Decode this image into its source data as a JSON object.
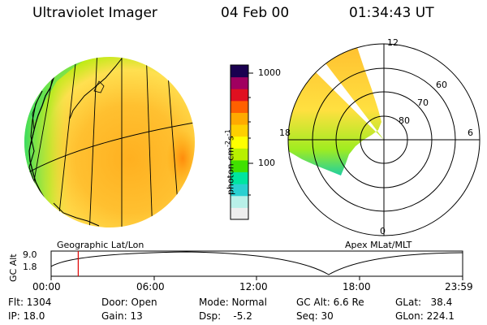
{
  "header": {
    "instrument": "Ultraviolet Imager",
    "date": "04 Feb 00",
    "time": "01:34:43 UT"
  },
  "colorbar": {
    "unit_label": "photon cm",
    "unit_exp1": "-2",
    "unit_s": "s",
    "unit_exp2": "-1",
    "ticks": [
      "1000",
      "100"
    ],
    "colors": [
      "#eeeeee",
      "#b8f0e8",
      "#2ad0d0",
      "#00e5a0",
      "#40e000",
      "#b8f000",
      "#ffff00",
      "#ffd000",
      "#ffaa00",
      "#ff6000",
      "#e01020",
      "#a00060",
      "#1a0050"
    ]
  },
  "polar_plot": {
    "clock_labels": {
      "top": "12",
      "left": "18",
      "right": "6",
      "bottom": "0"
    },
    "lat_labels": [
      "60",
      "70",
      "80"
    ]
  },
  "orbit_panel": {
    "left_title": "Geographic Lat/Lon",
    "right_title": "Apex MLat/MLT",
    "y_axis_label": "GC Alt",
    "y_ticks": [
      "9.0",
      "1.8"
    ],
    "x_ticks": [
      "00:00",
      "06:00",
      "12:00",
      "18:00",
      "23:59"
    ],
    "current_time_marker_hours": 1.58
  },
  "footer": {
    "flt": "Flt: 1304",
    "ip": "IP: 18.0",
    "door": "Door: Open",
    "gain": "Gain: 13",
    "mode": "Mode: Normal",
    "dsp": "Dsp:    -5.2",
    "gcalt": "GC Alt: 6.6 Re",
    "seq": "Seq: 30",
    "glat": "GLat:   38.4",
    "glon": "GLon: 224.1"
  }
}
